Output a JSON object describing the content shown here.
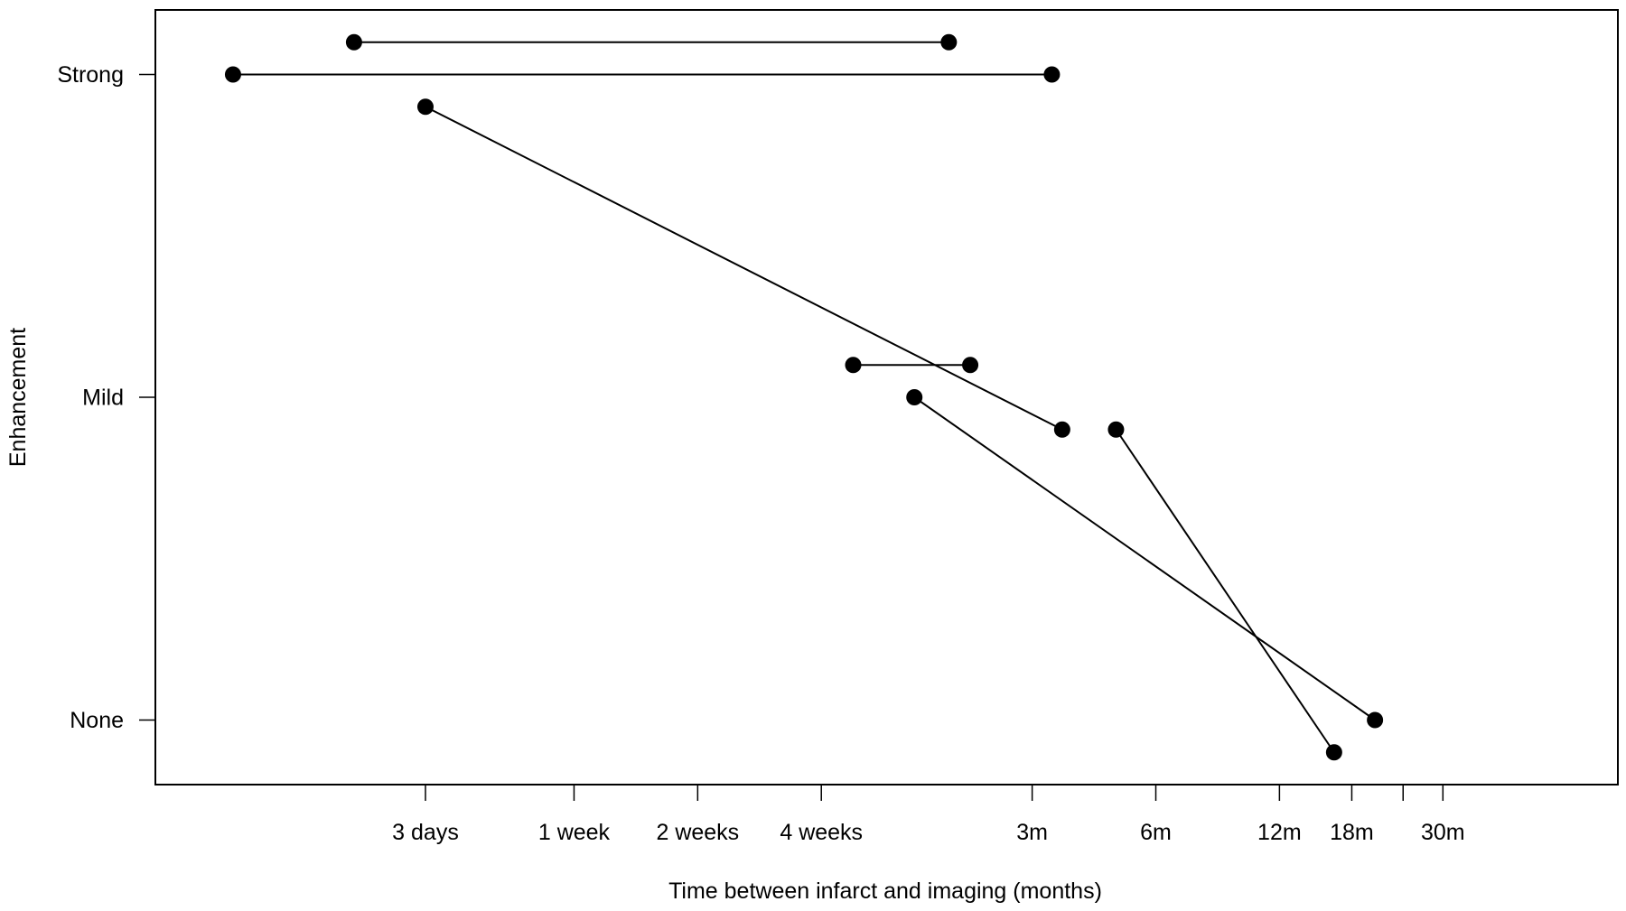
{
  "chart_data": {
    "type": "line",
    "title": "",
    "xlabel": "Time between infarct and imaging (months)",
    "ylabel": "Enhancement",
    "x_scale": "log",
    "x_ticks": [
      {
        "value": 0.1,
        "label": "3 days"
      },
      {
        "value": 0.23,
        "label": "1 week"
      },
      {
        "value": 0.46,
        "label": "2 weeks"
      },
      {
        "value": 0.92,
        "label": "4 weeks"
      },
      {
        "value": 3,
        "label": "3m"
      },
      {
        "value": 6,
        "label": "6m"
      },
      {
        "value": 12,
        "label": "12m"
      },
      {
        "value": 18,
        "label": "18m"
      },
      {
        "value": 24,
        "label": ""
      },
      {
        "value": 30,
        "label": "30m"
      }
    ],
    "x_range": [
      0.022,
      80
    ],
    "y_categories": [
      {
        "value": 0,
        "label": "None"
      },
      {
        "value": 1,
        "label": "Mild"
      },
      {
        "value": 2,
        "label": "Strong"
      }
    ],
    "y_range": [
      -0.2,
      2.2
    ],
    "grid": false,
    "series": [
      {
        "points": [
          {
            "x": 0.067,
            "y": 2.1
          },
          {
            "x": 1.88,
            "y": 2.1
          }
        ]
      },
      {
        "points": [
          {
            "x": 0.034,
            "y": 2.0
          },
          {
            "x": 3.35,
            "y": 2.0
          }
        ]
      },
      {
        "points": [
          {
            "x": 0.1,
            "y": 1.9
          },
          {
            "x": 3.55,
            "y": 0.9
          }
        ]
      },
      {
        "points": [
          {
            "x": 1.1,
            "y": 1.1
          },
          {
            "x": 2.12,
            "y": 1.1
          }
        ]
      },
      {
        "points": [
          {
            "x": 1.55,
            "y": 1.0
          },
          {
            "x": 20.5,
            "y": 0.0
          }
        ]
      },
      {
        "points": [
          {
            "x": 4.8,
            "y": 0.9
          },
          {
            "x": 16.3,
            "y": -0.1
          }
        ]
      }
    ]
  }
}
